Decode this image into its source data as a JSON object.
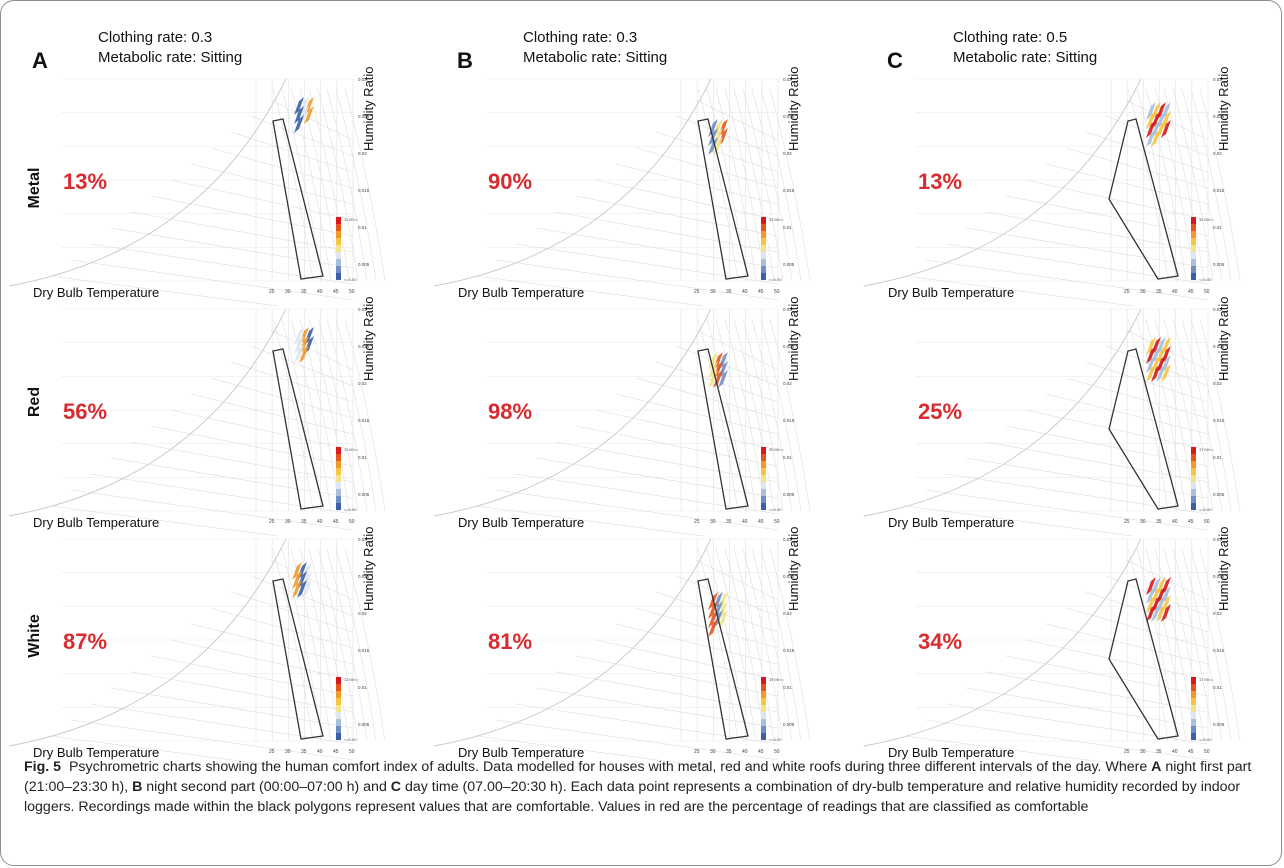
{
  "columns": [
    {
      "letter": "A",
      "clothing": "Clothing rate: 0.3",
      "metabolic": "Metabolic rate: Sitting"
    },
    {
      "letter": "B",
      "clothing": "Clothing rate: 0.3",
      "metabolic": "Metabolic rate: Sitting"
    },
    {
      "letter": "C",
      "clothing": "Clothing rate: 0.5",
      "metabolic": "Metabolic rate: Sitting"
    }
  ],
  "rows": [
    "Metal",
    "Red",
    "White"
  ],
  "axis_labels": {
    "x": "Dry Bulb Temperature",
    "y": "Humidity Ratio"
  },
  "chart_data": [
    {
      "type": "heatmap",
      "column": "A",
      "roof": "Metal",
      "comfortable_percent": "13%",
      "legend_max": "11.00<=",
      "legend_min": "<=0.00"
    },
    {
      "type": "heatmap",
      "column": "B",
      "roof": "Metal",
      "comfortable_percent": "90%",
      "legend_max": "32.00<=",
      "legend_min": "<=0.00"
    },
    {
      "type": "heatmap",
      "column": "C",
      "roof": "Metal",
      "comfortable_percent": "13%",
      "legend_max": "32.00<=",
      "legend_min": "<=0.00"
    },
    {
      "type": "heatmap",
      "column": "A",
      "roof": "Red",
      "comfortable_percent": "56%",
      "legend_max": "11.00<=",
      "legend_min": "<=0.00"
    },
    {
      "type": "heatmap",
      "column": "B",
      "roof": "Red",
      "comfortable_percent": "98%",
      "legend_max": "30.00<=",
      "legend_min": "<=0.00"
    },
    {
      "type": "heatmap",
      "column": "C",
      "roof": "Red",
      "comfortable_percent": "25%",
      "legend_max": "17.00<=",
      "legend_min": "<=0.00"
    },
    {
      "type": "heatmap",
      "column": "A",
      "roof": "White",
      "comfortable_percent": "87%",
      "legend_max": "12.00<=",
      "legend_min": "<=0.00"
    },
    {
      "type": "heatmap",
      "column": "B",
      "roof": "White",
      "comfortable_percent": "81%",
      "legend_max": "19.00<=",
      "legend_min": "<=0.00"
    },
    {
      "type": "heatmap",
      "column": "C",
      "roof": "White",
      "comfortable_percent": "34%",
      "legend_max": "17.00<=",
      "legend_min": "<=0.00"
    }
  ],
  "axis_ticks": {
    "x": [
      "25",
      "30",
      "35",
      "40",
      "45",
      "50"
    ],
    "y": [
      "0.03",
      "0.025",
      "0.02",
      "0.015",
      "0.01",
      "0.005"
    ]
  },
  "colors": {
    "percent": "#d92b2f",
    "scale": [
      "#3b5fa8",
      "#6f8fc4",
      "#a9bfdc",
      "#dfe6ef",
      "#f3e38a",
      "#f5c542",
      "#f09a2c",
      "#e5561f",
      "#d7191c"
    ]
  },
  "caption": {
    "lead": "Fig. 5",
    "text1": "Psychrometric charts showing the human comfort index of adults. Data modelled for houses with metal, red and white roofs during three different intervals of the day. Where ",
    "a": "A",
    "text2": " night first part (21:00–23:30 h), ",
    "b": "B",
    "text3": " night second part (00:00–07:00 h) and ",
    "c": "C",
    "text4": " day time (07.00–20:30 h). Each data point represents a combination of dry-bulb temperature and relative humidity recorded by indoor loggers. Recordings made within the black polygons represent values that are comfortable. Values in red are the percentage of readings that are classified as comfortable"
  }
}
